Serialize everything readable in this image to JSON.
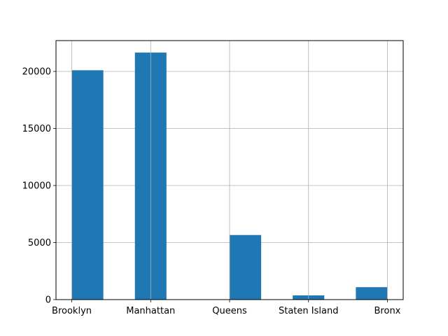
{
  "chart_data": {
    "type": "bar",
    "style": "histogram",
    "categories": [
      "Brooklyn",
      "Manhattan",
      "Queens",
      "Staten Island",
      "Bronx"
    ],
    "values": [
      20100,
      21650,
      5660,
      370,
      1090
    ],
    "xlim": [
      0,
      4
    ],
    "ylim": [
      0,
      22700
    ],
    "yticks": [
      0,
      5000,
      10000,
      15000,
      20000
    ],
    "xticks": [
      {
        "value": 0,
        "label": "Brooklyn"
      },
      {
        "value": 1,
        "label": "Manhattan"
      },
      {
        "value": 2,
        "label": "Queens"
      },
      {
        "value": 3,
        "label": "Staten Island"
      },
      {
        "value": 4,
        "label": "Bronx"
      }
    ],
    "bins": [
      {
        "start": 0.0,
        "end": 0.4,
        "value": 20100
      },
      {
        "start": 0.4,
        "end": 0.8,
        "value": 0
      },
      {
        "start": 0.8,
        "end": 1.2,
        "value": 21650
      },
      {
        "start": 1.2,
        "end": 1.6,
        "value": 0
      },
      {
        "start": 1.6,
        "end": 2.0,
        "value": 0
      },
      {
        "start": 2.0,
        "end": 2.4,
        "value": 5660
      },
      {
        "start": 2.4,
        "end": 2.8,
        "value": 0
      },
      {
        "start": 2.8,
        "end": 3.2,
        "value": 370
      },
      {
        "start": 3.2,
        "end": 3.6,
        "value": 0
      },
      {
        "start": 3.6,
        "end": 4.0,
        "value": 1090
      }
    ],
    "title": "",
    "xlabel": "",
    "ylabel": "",
    "grid": true,
    "bar_color": "#1f77b4",
    "grid_color": "#b0b0b0"
  }
}
